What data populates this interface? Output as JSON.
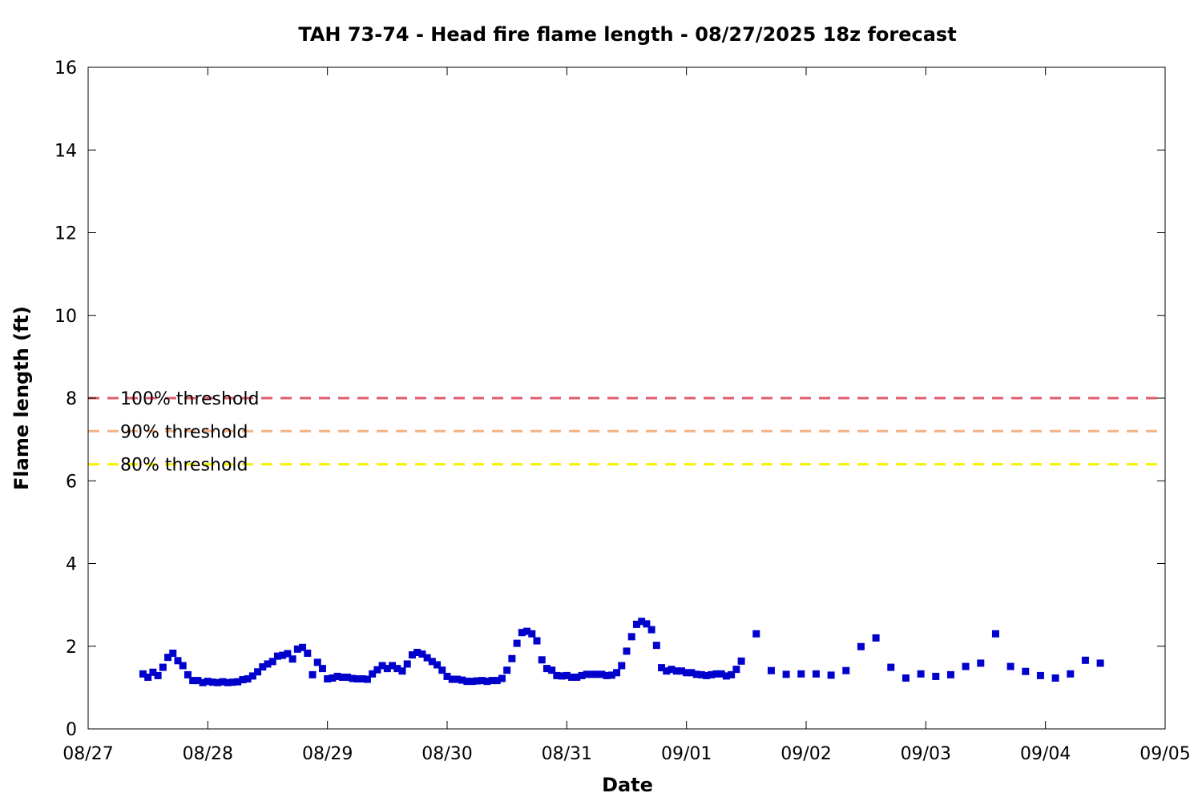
{
  "chart_data": {
    "type": "scatter",
    "title": "TAH 73-74 - Head fire flame length - 08/27/2025 18z forecast",
    "xlabel": "Date",
    "ylabel": "Flame length (ft)",
    "xlim": [
      "08/27",
      "09/05"
    ],
    "ylim": [
      0,
      16
    ],
    "x_ticks": [
      "08/27",
      "08/28",
      "08/29",
      "08/30",
      "08/31",
      "09/01",
      "09/02",
      "09/03",
      "09/04",
      "09/05"
    ],
    "y_ticks": [
      0,
      2,
      4,
      6,
      8,
      10,
      12,
      14,
      16
    ],
    "grid": false,
    "marker_color": "#0000cc",
    "thresholds": [
      {
        "label": "100% threshold",
        "value": 8.0,
        "color": "#e05c6e"
      },
      {
        "label": "90% threshold",
        "value": 7.2,
        "color": "#f4b183"
      },
      {
        "label": "80% threshold",
        "value": 6.4,
        "color": "#f2f200"
      }
    ],
    "series": [
      {
        "points": [
          [
            "08/27 11:00",
            1.33
          ],
          [
            "08/27 12:00",
            1.25
          ],
          [
            "08/27 13:00",
            1.37
          ],
          [
            "08/27 14:00",
            1.29
          ],
          [
            "08/27 15:00",
            1.49
          ],
          [
            "08/27 16:00",
            1.73
          ],
          [
            "08/27 17:00",
            1.83
          ],
          [
            "08/27 18:00",
            1.65
          ],
          [
            "08/27 19:00",
            1.53
          ],
          [
            "08/27 20:00",
            1.31
          ],
          [
            "08/27 21:00",
            1.17
          ],
          [
            "08/27 22:00",
            1.17
          ],
          [
            "08/27 23:00",
            1.12
          ],
          [
            "08/28 00:00",
            1.15
          ],
          [
            "08/28 01:00",
            1.13
          ],
          [
            "08/28 02:00",
            1.12
          ],
          [
            "08/28 03:00",
            1.14
          ],
          [
            "08/28 04:00",
            1.12
          ],
          [
            "08/28 05:00",
            1.13
          ],
          [
            "08/28 06:00",
            1.14
          ],
          [
            "08/28 07:00",
            1.19
          ],
          [
            "08/28 08:00",
            1.21
          ],
          [
            "08/28 09:00",
            1.28
          ],
          [
            "08/28 10:00",
            1.38
          ],
          [
            "08/28 11:00",
            1.5
          ],
          [
            "08/28 12:00",
            1.57
          ],
          [
            "08/28 13:00",
            1.63
          ],
          [
            "08/28 14:00",
            1.76
          ],
          [
            "08/28 15:00",
            1.78
          ],
          [
            "08/28 16:00",
            1.82
          ],
          [
            "08/28 17:00",
            1.69
          ],
          [
            "08/28 18:00",
            1.93
          ],
          [
            "08/28 19:00",
            1.97
          ],
          [
            "08/28 20:00",
            1.83
          ],
          [
            "08/28 21:00",
            1.31
          ],
          [
            "08/28 22:00",
            1.61
          ],
          [
            "08/28 23:00",
            1.46
          ],
          [
            "08/29 00:00",
            1.21
          ],
          [
            "08/29 01:00",
            1.23
          ],
          [
            "08/29 02:00",
            1.27
          ],
          [
            "08/29 03:00",
            1.25
          ],
          [
            "08/29 04:00",
            1.25
          ],
          [
            "08/29 05:00",
            1.22
          ],
          [
            "08/29 06:00",
            1.21
          ],
          [
            "08/29 07:00",
            1.21
          ],
          [
            "08/29 08:00",
            1.2
          ],
          [
            "08/29 09:00",
            1.33
          ],
          [
            "08/29 10:00",
            1.43
          ],
          [
            "08/29 11:00",
            1.53
          ],
          [
            "08/29 12:00",
            1.46
          ],
          [
            "08/29 13:00",
            1.53
          ],
          [
            "08/29 14:00",
            1.46
          ],
          [
            "08/29 15:00",
            1.4
          ],
          [
            "08/29 16:00",
            1.57
          ],
          [
            "08/29 17:00",
            1.79
          ],
          [
            "08/29 18:00",
            1.85
          ],
          [
            "08/29 19:00",
            1.81
          ],
          [
            "08/29 20:00",
            1.72
          ],
          [
            "08/29 21:00",
            1.63
          ],
          [
            "08/29 22:00",
            1.55
          ],
          [
            "08/29 23:00",
            1.42
          ],
          [
            "08/30 00:00",
            1.27
          ],
          [
            "08/30 01:00",
            1.2
          ],
          [
            "08/30 02:00",
            1.2
          ],
          [
            "08/30 03:00",
            1.18
          ],
          [
            "08/30 04:00",
            1.15
          ],
          [
            "08/30 05:00",
            1.15
          ],
          [
            "08/30 06:00",
            1.16
          ],
          [
            "08/30 07:00",
            1.17
          ],
          [
            "08/30 08:00",
            1.15
          ],
          [
            "08/30 09:00",
            1.17
          ],
          [
            "08/30 10:00",
            1.17
          ],
          [
            "08/30 11:00",
            1.22
          ],
          [
            "08/30 12:00",
            1.42
          ],
          [
            "08/30 13:00",
            1.7
          ],
          [
            "08/30 14:00",
            2.07
          ],
          [
            "08/30 15:00",
            2.33
          ],
          [
            "08/30 16:00",
            2.36
          ],
          [
            "08/30 17:00",
            2.3
          ],
          [
            "08/30 18:00",
            2.13
          ],
          [
            "08/30 19:00",
            1.67
          ],
          [
            "08/30 20:00",
            1.46
          ],
          [
            "08/30 21:00",
            1.42
          ],
          [
            "08/30 22:00",
            1.29
          ],
          [
            "08/30 23:00",
            1.28
          ],
          [
            "08/31 00:00",
            1.29
          ],
          [
            "08/31 01:00",
            1.25
          ],
          [
            "08/31 02:00",
            1.25
          ],
          [
            "08/31 03:00",
            1.29
          ],
          [
            "08/31 04:00",
            1.32
          ],
          [
            "08/31 05:00",
            1.32
          ],
          [
            "08/31 06:00",
            1.32
          ],
          [
            "08/31 07:00",
            1.32
          ],
          [
            "08/31 08:00",
            1.29
          ],
          [
            "08/31 09:00",
            1.3
          ],
          [
            "08/31 10:00",
            1.36
          ],
          [
            "08/31 11:00",
            1.53
          ],
          [
            "08/31 12:00",
            1.88
          ],
          [
            "08/31 13:00",
            2.23
          ],
          [
            "08/31 14:00",
            2.53
          ],
          [
            "08/31 15:00",
            2.6
          ],
          [
            "08/31 16:00",
            2.54
          ],
          [
            "08/31 17:00",
            2.4
          ],
          [
            "08/31 18:00",
            2.02
          ],
          [
            "08/31 19:00",
            1.48
          ],
          [
            "08/31 20:00",
            1.4
          ],
          [
            "08/31 21:00",
            1.44
          ],
          [
            "08/31 22:00",
            1.4
          ],
          [
            "08/31 23:00",
            1.4
          ],
          [
            "09/01 00:00",
            1.36
          ],
          [
            "09/01 01:00",
            1.36
          ],
          [
            "09/01 02:00",
            1.32
          ],
          [
            "09/01 03:00",
            1.31
          ],
          [
            "09/01 04:00",
            1.29
          ],
          [
            "09/01 05:00",
            1.31
          ],
          [
            "09/01 06:00",
            1.33
          ],
          [
            "09/01 07:00",
            1.33
          ],
          [
            "09/01 08:00",
            1.28
          ],
          [
            "09/01 09:00",
            1.31
          ],
          [
            "09/01 10:00",
            1.44
          ],
          [
            "09/01 11:00",
            1.64
          ],
          [
            "09/01 14:00",
            2.3
          ],
          [
            "09/01 17:00",
            1.41
          ],
          [
            "09/01 20:00",
            1.32
          ],
          [
            "09/01 23:00",
            1.33
          ],
          [
            "09/02 02:00",
            1.33
          ],
          [
            "09/02 05:00",
            1.3
          ],
          [
            "09/02 08:00",
            1.41
          ],
          [
            "09/02 11:00",
            1.99
          ],
          [
            "09/02 14:00",
            2.2
          ],
          [
            "09/02 17:00",
            1.49
          ],
          [
            "09/02 20:00",
            1.23
          ],
          [
            "09/02 23:00",
            1.33
          ],
          [
            "09/03 02:00",
            1.27
          ],
          [
            "09/03 05:00",
            1.31
          ],
          [
            "09/03 08:00",
            1.51
          ],
          [
            "09/03 11:00",
            1.59
          ],
          [
            "09/03 14:00",
            2.3
          ],
          [
            "09/03 17:00",
            1.51
          ],
          [
            "09/03 20:00",
            1.39
          ],
          [
            "09/03 23:00",
            1.29
          ],
          [
            "09/04 02:00",
            1.23
          ],
          [
            "09/04 05:00",
            1.33
          ],
          [
            "09/04 08:00",
            1.66
          ],
          [
            "09/04 11:00",
            1.59
          ]
        ]
      }
    ]
  }
}
